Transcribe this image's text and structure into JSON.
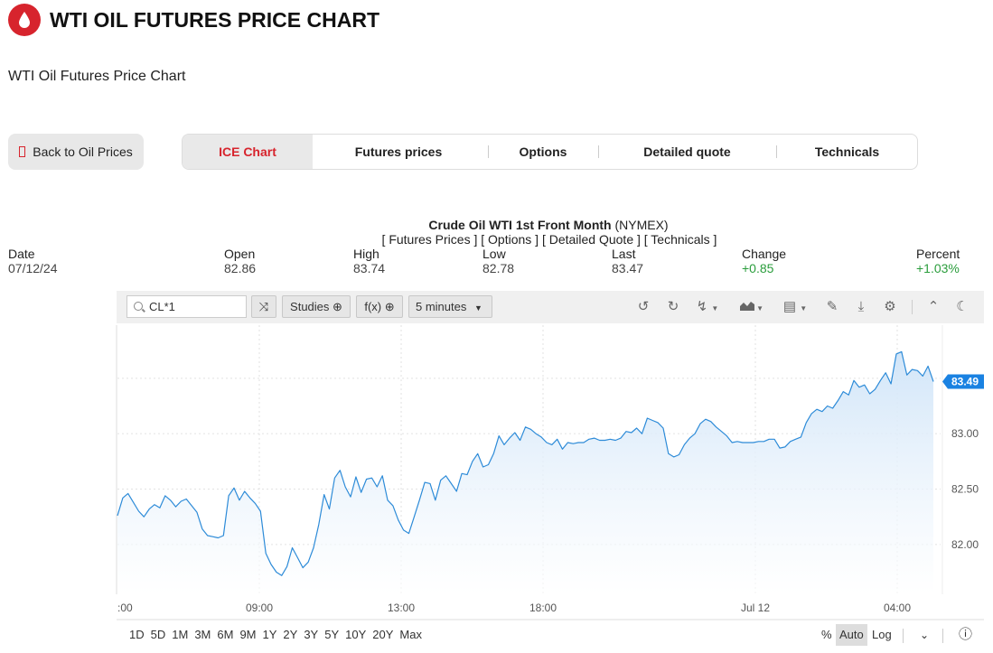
{
  "header": {
    "title": "WTI OIL FUTURES PRICE CHART",
    "subtitle": "WTI Oil Futures Price Chart"
  },
  "nav": {
    "back_label": "Back to Oil Prices",
    "tabs": [
      "ICE Chart",
      "Futures prices",
      "Options",
      "Detailed quote",
      "Technicals"
    ],
    "active_tab": "ICE Chart"
  },
  "quote": {
    "name": "Crude Oil WTI 1st Front Month",
    "exchange": "(NYMEX)",
    "links": "[ Futures Prices ] [ Options ] [ Detailed Quote ] [ Technicals ]",
    "columns": [
      {
        "label": "Date",
        "value": "07/12/24"
      },
      {
        "label": "Open",
        "value": "82.86"
      },
      {
        "label": "High",
        "value": "83.74"
      },
      {
        "label": "Low",
        "value": "82.78"
      },
      {
        "label": "Last",
        "value": "83.47"
      },
      {
        "label": "Change",
        "value": "+0.85"
      },
      {
        "label": "Percent",
        "value": "+1.03%"
      }
    ]
  },
  "toolbar": {
    "symbol": "CL*1",
    "studies_label": "Studies",
    "fx_label": "f(x)",
    "interval_label": "5 minutes",
    "icons": [
      "undo-icon",
      "redo-icon",
      "lightning-icon",
      "chart-type-icon",
      "layout-icon",
      "pencil-icon",
      "download-icon",
      "settings-icon",
      "collapse-icon",
      "dark-mode-icon"
    ]
  },
  "chart_data": {
    "type": "area",
    "title": "",
    "xlabel": "",
    "ylabel": "",
    "x_ticks": [
      ":00",
      "09:00",
      "13:00",
      "18:00",
      "Jul 12",
      "04:00"
    ],
    "y_ticks": [
      82.0,
      82.5,
      83.0
    ],
    "y_tick_labels": [
      "82.00",
      "82.50",
      "83.00"
    ],
    "ylim": [
      81.55,
      83.98
    ],
    "last_price_label": "83.49",
    "colors": {
      "line": "#2d8bd8",
      "fill_top": "#cfe4f8",
      "label_bg": "#1a82e2"
    },
    "series": [
      {
        "values": [
          82.26,
          82.42,
          82.46,
          82.38,
          82.3,
          82.25,
          82.32,
          82.36,
          82.33,
          82.44,
          82.4,
          82.34,
          82.39,
          82.41,
          82.35,
          82.29,
          82.14,
          82.08,
          82.07,
          82.06,
          82.08,
          82.44,
          82.51,
          82.4,
          82.48,
          82.42,
          82.37,
          82.3,
          81.92,
          81.82,
          81.75,
          81.72,
          81.8,
          81.97,
          81.88,
          81.79,
          81.84,
          81.97,
          82.18,
          82.45,
          82.32,
          82.6,
          82.67,
          82.52,
          82.43,
          82.61,
          82.47,
          82.59,
          82.6,
          82.52,
          82.62,
          82.4,
          82.35,
          82.22,
          82.13,
          82.1,
          82.25,
          82.4,
          82.56,
          82.55,
          82.4,
          82.58,
          82.62,
          82.55,
          82.48,
          82.64,
          82.63,
          82.75,
          82.82,
          82.7,
          82.72,
          82.82,
          82.98,
          82.9,
          82.96,
          83.01,
          82.94,
          83.06,
          83.04,
          83.0,
          82.97,
          82.92,
          82.9,
          82.95,
          82.86,
          82.92,
          82.91,
          82.92,
          82.92,
          82.95,
          82.96,
          82.94,
          82.94,
          82.95,
          82.94,
          82.96,
          83.02,
          83.01,
          83.05,
          83.0,
          83.14,
          83.12,
          83.1,
          83.05,
          82.82,
          82.79,
          82.81,
          82.9,
          82.96,
          83.0,
          83.09,
          83.13,
          83.11,
          83.06,
          83.02,
          82.98,
          82.92,
          82.93,
          82.92,
          82.92,
          82.92,
          82.93,
          82.93,
          82.95,
          82.95,
          82.87,
          82.88,
          82.93,
          82.95,
          82.97,
          83.1,
          83.18,
          83.22,
          83.2,
          83.25,
          83.23,
          83.3,
          83.38,
          83.35,
          83.48,
          83.42,
          83.44,
          83.36,
          83.4,
          83.48,
          83.55,
          83.45,
          83.72,
          83.74,
          83.53,
          83.58,
          83.57,
          83.52,
          83.61,
          83.47
        ]
      }
    ]
  }
}
